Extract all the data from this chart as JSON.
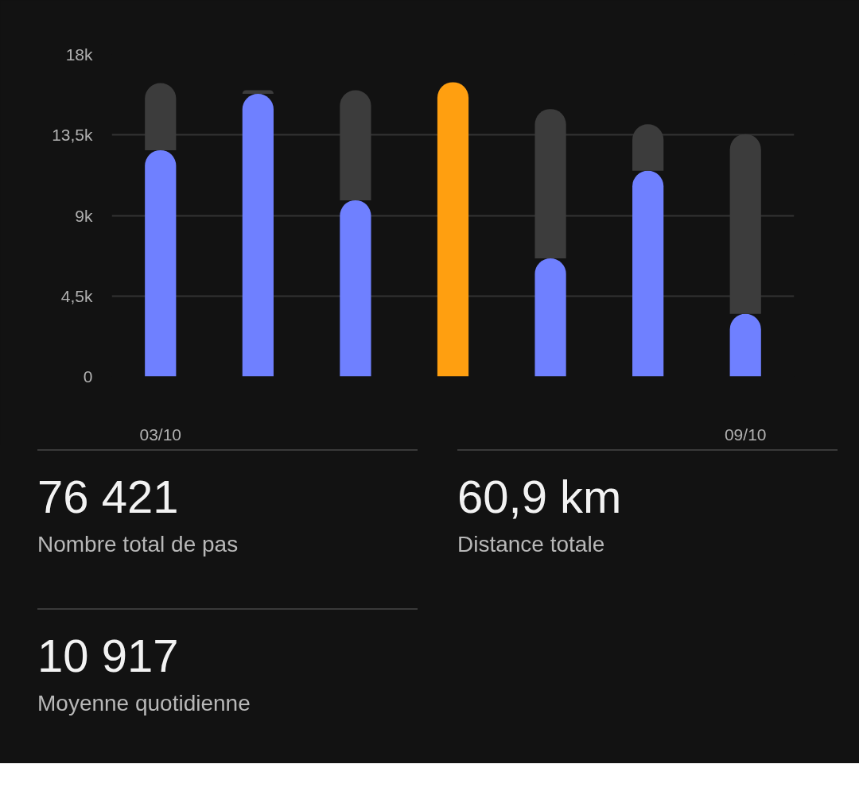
{
  "chart_data": {
    "type": "bar",
    "categories": [
      "03/10",
      null,
      null,
      null,
      null,
      null,
      "09/10"
    ],
    "series": [
      {
        "colors": [
          "#6f80ff",
          "#6f80ff",
          "#6f80ff",
          "#ff9f10",
          "#6f80ff",
          "#6f80ff",
          "#6f80ff"
        ],
        "values": [
          12650,
          15800,
          9850,
          16450,
          6600,
          11500,
          3500
        ]
      },
      {
        "color": "#3c3c3c",
        "values": [
          3750,
          200,
          6150,
          null,
          8350,
          2600,
          10050
        ]
      }
    ],
    "stacked": true,
    "ylim": [
      0,
      18000
    ],
    "yticks": [
      0,
      {
        "value": 4500,
        "label": "4,5k"
      },
      {
        "value": 9000,
        "label": "9k"
      },
      {
        "value": 13500,
        "label": "13,5k"
      },
      {
        "value": 18000,
        "label": "18k"
      }
    ],
    "grid": "y",
    "annotations": [
      "76 421",
      "Nombre total de pas",
      "60,9 km",
      "Distance totale",
      "10 917",
      "Moyenne quotidienne"
    ]
  }
}
